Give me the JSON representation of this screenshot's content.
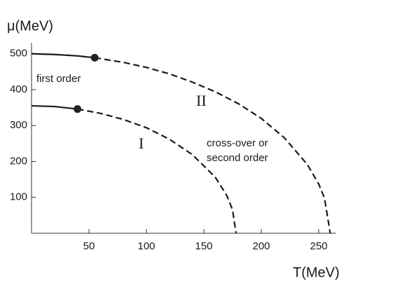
{
  "chart_data": {
    "type": "line",
    "y_label": "μ(MeV)",
    "x_label": "T(MeV)",
    "annotations": [
      "first order",
      "cross-over or",
      "second order"
    ],
    "xlim": [
      0,
      265
    ],
    "ylim": [
      0,
      530
    ],
    "xticks": [
      50,
      100,
      150,
      200,
      250
    ],
    "yticks": [
      100,
      200,
      300,
      400,
      500
    ],
    "series": [
      {
        "name": "II",
        "color": "#1a1a1a",
        "x": [
          0,
          20,
          40,
          55,
          80,
          100,
          120,
          140,
          160,
          180,
          200,
          220,
          240,
          250,
          255,
          260
        ],
        "values": [
          500,
          498,
          494,
          489,
          476,
          462,
          444,
          421,
          394,
          361,
          320,
          266,
          192,
          137,
          98,
          0
        ],
        "critical_point": {
          "x": 55,
          "y": 489
        }
      },
      {
        "name": "I",
        "color": "#1a1a1a",
        "x": [
          0,
          20,
          40,
          60,
          80,
          100,
          120,
          140,
          160,
          170,
          175,
          178
        ],
        "values": [
          355,
          353,
          346,
          334,
          317,
          294,
          262,
          219,
          156,
          105,
          65,
          0
        ],
        "critical_point": {
          "x": 40,
          "y": 346
        }
      }
    ]
  }
}
